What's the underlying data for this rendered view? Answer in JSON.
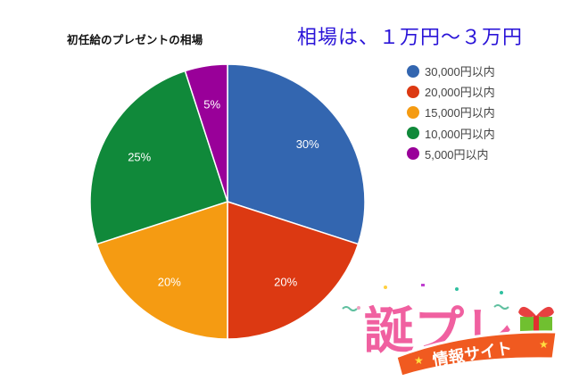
{
  "chart_title": "初任給のプレゼントの相場",
  "headline": "相場は、１万円～３万円",
  "chart_data": {
    "type": "pie",
    "title": "初任給のプレゼントの相場",
    "categories": [
      "30,000円以内",
      "20,000円以内",
      "15,000円以内",
      "10,000円以内",
      "5,000円以内"
    ],
    "values": [
      30,
      20,
      20,
      25,
      5
    ],
    "labels": [
      "30%",
      "20%",
      "20%",
      "25%",
      "5%"
    ],
    "colors": [
      "#3366b0",
      "#dc3912",
      "#f59b12",
      "#10893a",
      "#990099"
    ],
    "start_angle": "12 o'clock, clockwise",
    "legend_position": "right"
  },
  "legend": [
    {
      "label": "30,000円以内",
      "color": "#3366b0"
    },
    {
      "label": "20,000円以内",
      "color": "#dc3912"
    },
    {
      "label": "15,000円以内",
      "color": "#f59b12"
    },
    {
      "label": "10,000円以内",
      "color": "#10893a"
    },
    {
      "label": "5,000円以内",
      "color": "#990099"
    }
  ],
  "logo": {
    "main_text": "誕プレ",
    "ribbon_text": "情報サイト"
  }
}
